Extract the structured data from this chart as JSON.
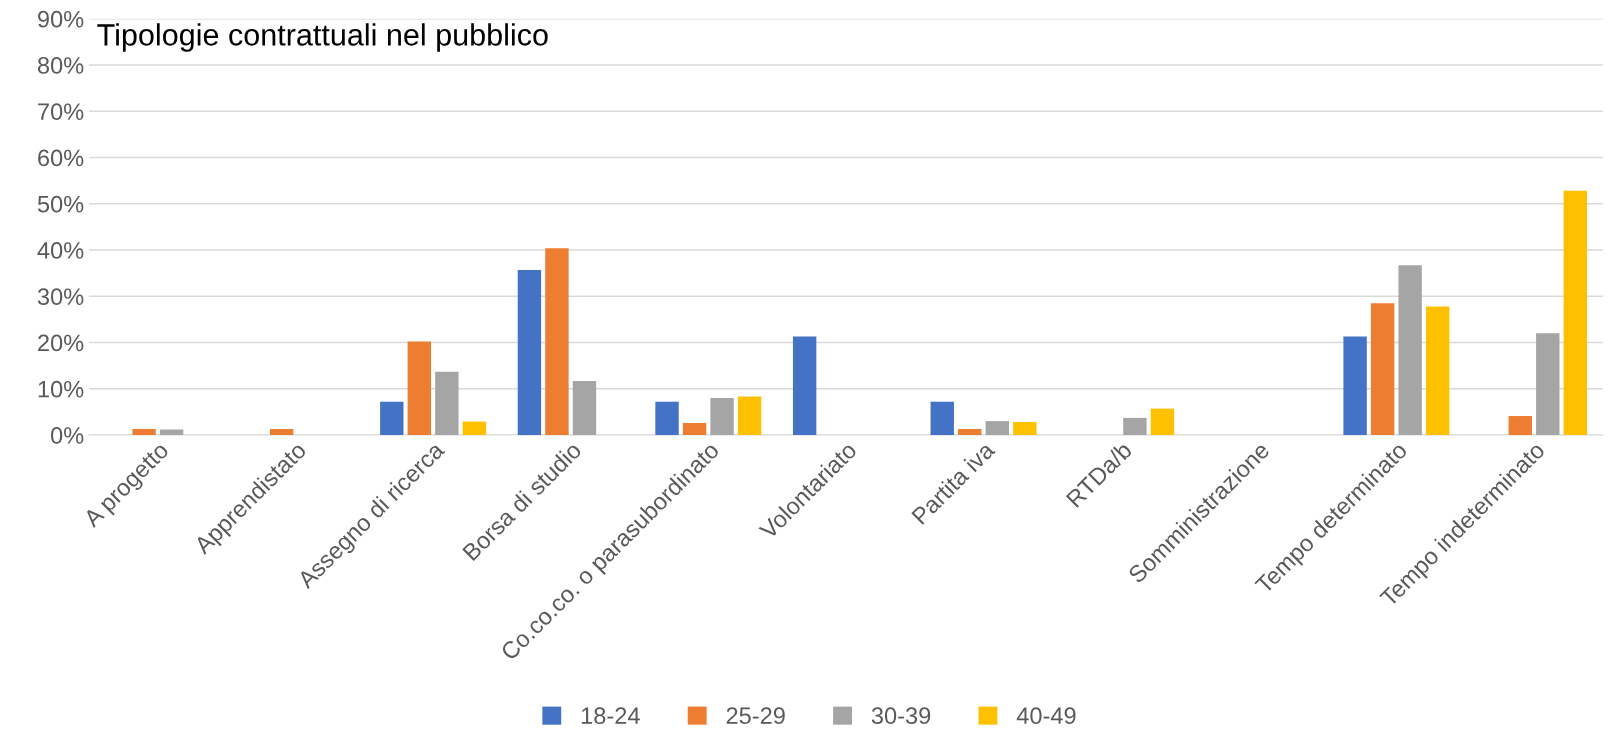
{
  "chart_data": {
    "type": "bar",
    "title": "Tipologie contrattuali nel pubblico",
    "categories": [
      "A progetto",
      "Apprendistato",
      "Assegno di ricerca",
      "Borsa di studio",
      "Co.co.co. o parasubordinato",
      "Volontariato",
      "Partita iva",
      "RTDa/b",
      "Somministrazione",
      "Tempo determinato",
      "Tempo indeterminato"
    ],
    "series": [
      {
        "name": "18-24",
        "color": "#4472c4",
        "values": [
          null,
          null,
          7.2,
          35.7,
          7.2,
          21.3,
          7.2,
          null,
          null,
          21.3,
          null
        ]
      },
      {
        "name": "25-29",
        "color": "#ed7d31",
        "values": [
          1.3,
          1.3,
          20.2,
          40.4,
          2.6,
          null,
          1.3,
          null,
          null,
          28.5,
          4.1
        ]
      },
      {
        "name": "30-39",
        "color": "#a5a5a5",
        "values": [
          1.2,
          null,
          13.7,
          11.7,
          8.0,
          null,
          3.0,
          3.7,
          null,
          36.7,
          22.0
        ]
      },
      {
        "name": "40-49",
        "color": "#ffc000",
        "values": [
          null,
          null,
          2.9,
          null,
          8.3,
          null,
          2.8,
          5.7,
          null,
          27.8,
          52.8
        ]
      }
    ],
    "ylim": [
      0,
      90
    ],
    "yticks": [
      {
        "value": 0,
        "label": "0%"
      },
      {
        "value": 10,
        "label": "10%"
      },
      {
        "value": 20,
        "label": "20%"
      },
      {
        "value": 30,
        "label": "30%"
      },
      {
        "value": 40,
        "label": "40%"
      },
      {
        "value": 50,
        "label": "50%"
      },
      {
        "value": 60,
        "label": "60%"
      },
      {
        "value": 70,
        "label": "70%"
      },
      {
        "value": 80,
        "label": "80%"
      },
      {
        "value": 90,
        "label": "90%"
      }
    ],
    "grid": "y",
    "legend": "bottom"
  }
}
